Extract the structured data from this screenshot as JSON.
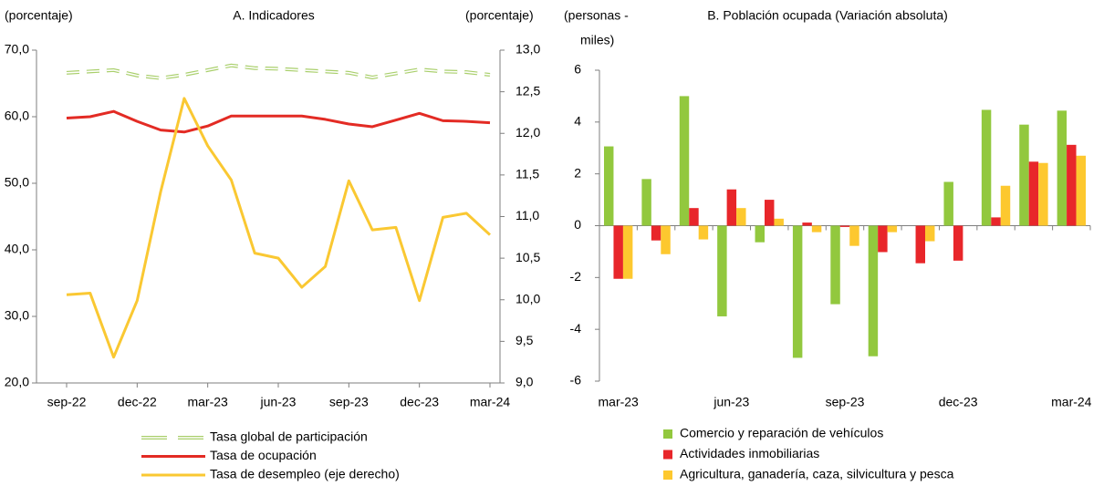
{
  "chart_data": [
    {
      "type": "line",
      "title": "A. Indicadores",
      "y_label": "(porcentaje)",
      "y2_label": "(porcentaje)",
      "categories": [
        "sep-22",
        null,
        null,
        "dec-22",
        null,
        null,
        "mar-23",
        null,
        null,
        "jun-23",
        null,
        null,
        "sep-23",
        null,
        null,
        "dec-23",
        null,
        null,
        "mar-24"
      ],
      "series": [
        {
          "name": "Tasa global de participación",
          "color": "#a9cf6b",
          "style": "dashed",
          "values": [
            66.6,
            66.8,
            67.0,
            66.2,
            65.8,
            66.3,
            67.0,
            67.7,
            67.3,
            67.2,
            67.0,
            66.8,
            66.6,
            65.9,
            66.5,
            67.1,
            66.8,
            66.7,
            66.3
          ]
        },
        {
          "name": "Tasa de ocupación",
          "color": "#e32b24",
          "values": [
            59.8,
            60.0,
            60.8,
            59.3,
            58.0,
            57.7,
            58.6,
            60.1,
            60.1,
            60.1,
            60.1,
            59.6,
            58.9,
            58.5,
            59.5,
            60.5,
            59.4,
            59.3,
            59.1
          ]
        },
        {
          "name": "Tasa de desempleo (eje derecho)",
          "color": "#fac832",
          "axis": "y2",
          "values": [
            10.06,
            10.08,
            9.31,
            9.99,
            11.3,
            12.42,
            11.85,
            11.44,
            10.56,
            10.5,
            10.15,
            10.4,
            11.43,
            10.84,
            10.87,
            9.99,
            10.99,
            11.04,
            10.78
          ]
        }
      ],
      "ylim": [
        20,
        70
      ],
      "yticks": [
        {
          "value": 20,
          "label": "20,0"
        },
        {
          "value": 30,
          "label": "30,0"
        },
        {
          "value": 40,
          "label": "40,0"
        },
        {
          "value": 50,
          "label": "50,0"
        },
        {
          "value": 60,
          "label": "60,0"
        },
        {
          "value": 70,
          "label": "70,0"
        }
      ],
      "y2lim": [
        9,
        13
      ],
      "y2ticks": [
        {
          "value": 9,
          "label": "9,0"
        },
        {
          "value": 9.5,
          "label": "9,5"
        },
        {
          "value": 10,
          "label": "10,0"
        },
        {
          "value": 10.5,
          "label": "10,5"
        },
        {
          "value": 11,
          "label": "11,0"
        },
        {
          "value": 11.5,
          "label": "11,5"
        },
        {
          "value": 12,
          "label": "12,0"
        },
        {
          "value": 12.5,
          "label": "12,5"
        },
        {
          "value": 13,
          "label": "13,0"
        }
      ]
    },
    {
      "type": "bar",
      "title": "B. Población ocupada (Variación absoluta)",
      "y_label": [
        "(personas -",
        "miles)"
      ],
      "categories": [
        "mar-23",
        null,
        null,
        "jun-23",
        null,
        null,
        "sep-23",
        null,
        null,
        "dec-23",
        null,
        null,
        "mar-24"
      ],
      "series": [
        {
          "name": "Comercio y reparación de vehículos",
          "color": "#92c83e",
          "values": [
            3.06,
            1.8,
            5.0,
            -3.5,
            -0.64,
            -5.1,
            -3.03,
            -5.04,
            0,
            1.69,
            4.47,
            3.9,
            4.44
          ]
        },
        {
          "name": "Actividades inmobiliarias",
          "color": "#e8262a",
          "values": [
            -2.05,
            -0.57,
            0.68,
            1.4,
            1.0,
            0.12,
            -0.05,
            -1.02,
            -1.45,
            -1.35,
            0.32,
            2.47,
            3.12
          ]
        },
        {
          "name": "Agricultura, ganadería, caza, silvicultura y pesca",
          "color": "#fdc82f",
          "values": [
            -2.05,
            -1.1,
            -0.53,
            0.68,
            0.27,
            -0.25,
            -0.78,
            -0.25,
            -0.6,
            0,
            1.54,
            2.42,
            2.7
          ]
        }
      ],
      "ylim": [
        -6,
        6
      ],
      "yticks": [
        -6,
        -4,
        -2,
        0,
        2,
        4,
        6
      ]
    }
  ]
}
